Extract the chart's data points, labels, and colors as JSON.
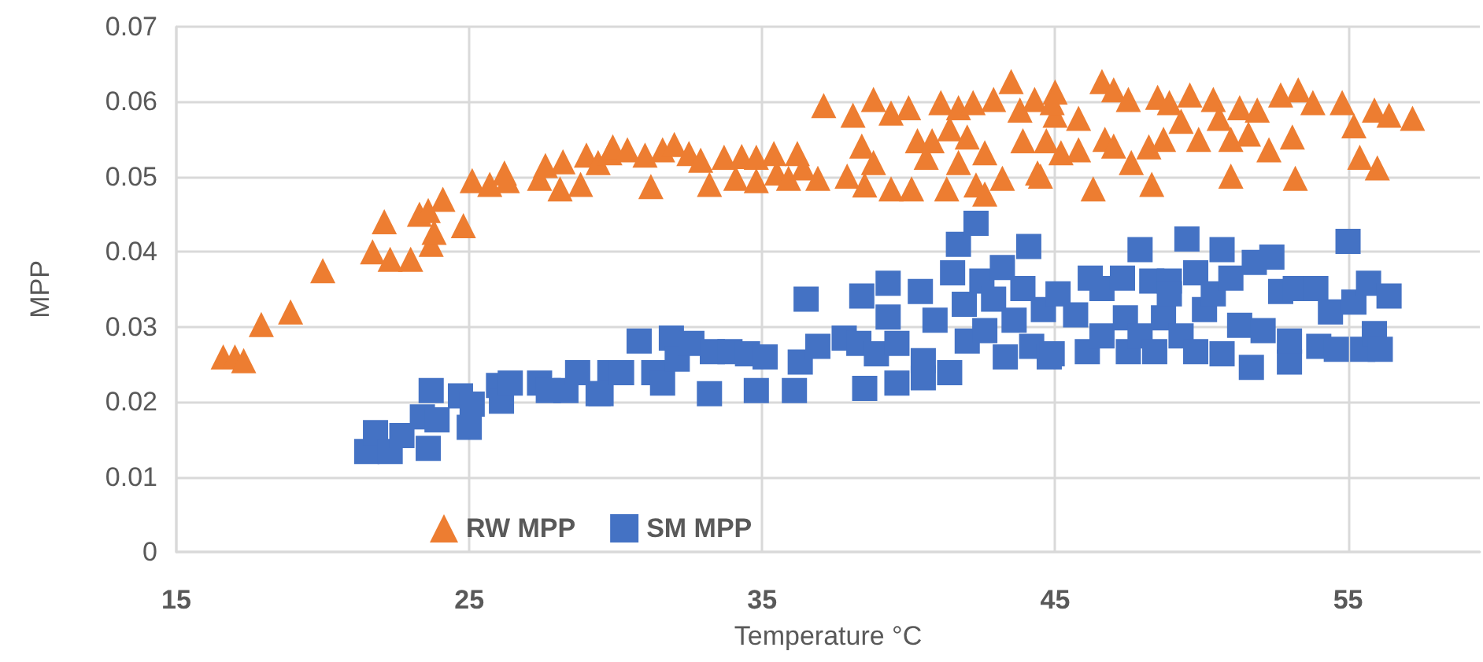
{
  "chart_data": {
    "type": "scatter",
    "xlabel": "Temperature °C",
    "ylabel": "MPP",
    "xlim": [
      15,
      59.5
    ],
    "xticks": [
      15,
      25,
      35,
      45,
      55
    ],
    "ylim": [
      0,
      0.07
    ],
    "yticks": [
      0,
      0.01,
      0.02,
      0.03,
      0.04,
      0.05,
      0.06,
      0.07
    ],
    "grid": true,
    "legend": "bottom left",
    "series": [
      {
        "name": "RW MPP",
        "color": "#ed7d31",
        "marker": "triangle",
        "x": [
          16.6,
          17.0,
          17.3,
          17.9,
          18.9,
          20.0,
          21.7,
          22.1,
          22.3,
          23.0,
          23.3,
          23.6,
          24.1,
          23.7,
          23.8,
          24.8,
          25.1,
          25.7,
          26.2,
          26.3,
          27.4,
          27.6,
          28.1,
          28.2,
          28.8,
          29.0,
          29.4,
          29.8,
          29.9,
          30.4,
          31.0,
          31.2,
          31.6,
          32.0,
          32.5,
          32.9,
          33.2,
          33.7,
          34.1,
          34.3,
          34.8,
          34.8,
          35.4,
          35.5,
          35.9,
          36.2,
          36.4,
          36.9,
          37.1,
          37.9,
          38.1,
          38.4,
          38.5,
          38.8,
          38.8,
          39.4,
          39.4,
          40.0,
          40.1,
          40.3,
          40.6,
          40.8,
          41.1,
          41.3,
          41.4,
          41.7,
          41.7,
          42.0,
          42.2,
          42.3,
          42.6,
          42.6,
          42.9,
          43.2,
          43.5,
          43.8,
          43.9,
          44.4,
          44.3,
          44.7,
          45.0,
          45.0,
          44.9,
          44.5,
          45.2,
          45.8,
          45.8,
          46.3,
          46.6,
          46.7,
          47.0,
          47.0,
          47.5,
          47.6,
          48.2,
          48.3,
          48.5,
          48.7,
          48.9,
          49.3,
          49.6,
          49.9,
          50.4,
          50.6,
          51.0,
          51.0,
          51.3,
          51.6,
          51.9,
          52.3,
          52.7,
          53.1,
          53.3,
          53.2,
          53.8,
          54.8,
          55.2,
          55.4,
          55.9,
          56.0,
          56.4,
          57.2
        ],
        "values": [
          0.026,
          0.026,
          0.0255,
          0.0303,
          0.032,
          0.0375,
          0.04,
          0.044,
          0.039,
          0.039,
          0.045,
          0.0455,
          0.047,
          0.041,
          0.0426,
          0.0435,
          0.0495,
          0.049,
          0.0505,
          0.0495,
          0.0498,
          0.0515,
          0.0484,
          0.052,
          0.049,
          0.0529,
          0.0519,
          0.0532,
          0.054,
          0.0536,
          0.0529,
          0.0487,
          0.0536,
          0.0543,
          0.0531,
          0.0522,
          0.049,
          0.0526,
          0.0498,
          0.0527,
          0.0526,
          0.0495,
          0.0531,
          0.0505,
          0.0498,
          0.0531,
          0.0512,
          0.0498,
          0.0595,
          0.0501,
          0.0582,
          0.0541,
          0.0489,
          0.0603,
          0.0519,
          0.0585,
          0.0484,
          0.0592,
          0.0484,
          0.0548,
          0.0526,
          0.0548,
          0.0599,
          0.0484,
          0.0564,
          0.0592,
          0.0519,
          0.0553,
          0.0599,
          0.0489,
          0.0532,
          0.0477,
          0.0603,
          0.0498,
          0.0627,
          0.0589,
          0.0548,
          0.0505,
          0.0603,
          0.0548,
          0.0613,
          0.0582,
          0.0599,
          0.0501,
          0.0532,
          0.0578,
          0.0536,
          0.0484,
          0.0627,
          0.055,
          0.0616,
          0.0541,
          0.0603,
          0.0519,
          0.054,
          0.049,
          0.0606,
          0.055,
          0.0599,
          0.0574,
          0.0609,
          0.055,
          0.0603,
          0.0578,
          0.055,
          0.0501,
          0.0592,
          0.0557,
          0.0589,
          0.0536,
          0.0609,
          0.0553,
          0.0616,
          0.0498,
          0.0599,
          0.0599,
          0.0568,
          0.0526,
          0.0589,
          0.0512,
          0.0582,
          0.0578
        ]
      },
      {
        "name": "SM MPP",
        "color": "#4472c4",
        "marker": "square",
        "x": [
          21.5,
          21.8,
          22.3,
          22.7,
          23.6,
          23.4,
          23.9,
          23.7,
          24.7,
          25.0,
          25.1,
          26.0,
          26.1,
          26.4,
          27.4,
          27.7,
          28.3,
          28.7,
          29.4,
          29.8,
          29.5,
          30.2,
          30.8,
          31.3,
          31.6,
          31.9,
          32.1,
          32.6,
          33.2,
          33.3,
          33.9,
          34.5,
          34.8,
          35.1,
          36.1,
          36.3,
          36.5,
          36.9,
          37.8,
          38.3,
          38.4,
          38.5,
          38.9,
          39.3,
          39.3,
          39.6,
          39.6,
          40.4,
          40.5,
          40.5,
          40.9,
          41.4,
          41.5,
          41.7,
          41.9,
          42.0,
          42.3,
          42.5,
          42.6,
          42.9,
          43.2,
          43.3,
          43.6,
          43.9,
          44.1,
          44.2,
          44.6,
          44.8,
          45.1,
          44.9,
          45.7,
          46.1,
          46.2,
          46.6,
          46.6,
          47.3,
          47.4,
          47.5,
          47.9,
          47.9,
          48.3,
          48.4,
          48.7,
          48.9,
          48.9,
          49.3,
          49.5,
          49.8,
          49.8,
          50.1,
          50.4,
          50.7,
          50.7,
          51.0,
          51.3,
          51.7,
          51.8,
          52.1,
          52.4,
          52.7,
          53.0,
          53.0,
          53.2,
          53.9,
          54.0,
          54.4,
          54.6,
          55.0,
          55.2,
          55.5,
          55.7,
          55.9,
          56.1,
          56.4
        ],
        "values": [
          0.0134,
          0.0159,
          0.0134,
          0.0155,
          0.0138,
          0.018,
          0.0176,
          0.0215,
          0.0208,
          0.0166,
          0.0197,
          0.0222,
          0.0201,
          0.0225,
          0.0225,
          0.0215,
          0.0215,
          0.0239,
          0.0211,
          0.0239,
          0.0211,
          0.0239,
          0.0281,
          0.0239,
          0.0225,
          0.0285,
          0.0257,
          0.0278,
          0.0211,
          0.0267,
          0.0267,
          0.0264,
          0.0215,
          0.026,
          0.0215,
          0.0253,
          0.0337,
          0.0274,
          0.0285,
          0.0278,
          0.0341,
          0.0218,
          0.0264,
          0.0358,
          0.0313,
          0.0225,
          0.0278,
          0.0347,
          0.0232,
          0.0255,
          0.0309,
          0.0239,
          0.0372,
          0.041,
          0.033,
          0.0281,
          0.0438,
          0.0361,
          0.0295,
          0.0337,
          0.0379,
          0.026,
          0.0309,
          0.0351,
          0.0407,
          0.0274,
          0.0323,
          0.026,
          0.0344,
          0.0264,
          0.0316,
          0.0267,
          0.0365,
          0.0351,
          0.0288,
          0.0365,
          0.0312,
          0.0267,
          0.0403,
          0.0288,
          0.0361,
          0.0267,
          0.0312,
          0.0361,
          0.0344,
          0.0288,
          0.0417,
          0.0372,
          0.0267,
          0.0323,
          0.0344,
          0.0403,
          0.0264,
          0.0365,
          0.0302,
          0.0246,
          0.0386,
          0.0295,
          0.0393,
          0.0347,
          0.0253,
          0.0281,
          0.0351,
          0.0351,
          0.0274,
          0.032,
          0.027,
          0.0414,
          0.0333,
          0.027,
          0.0358,
          0.0291,
          0.027,
          0.0341
        ]
      }
    ]
  }
}
